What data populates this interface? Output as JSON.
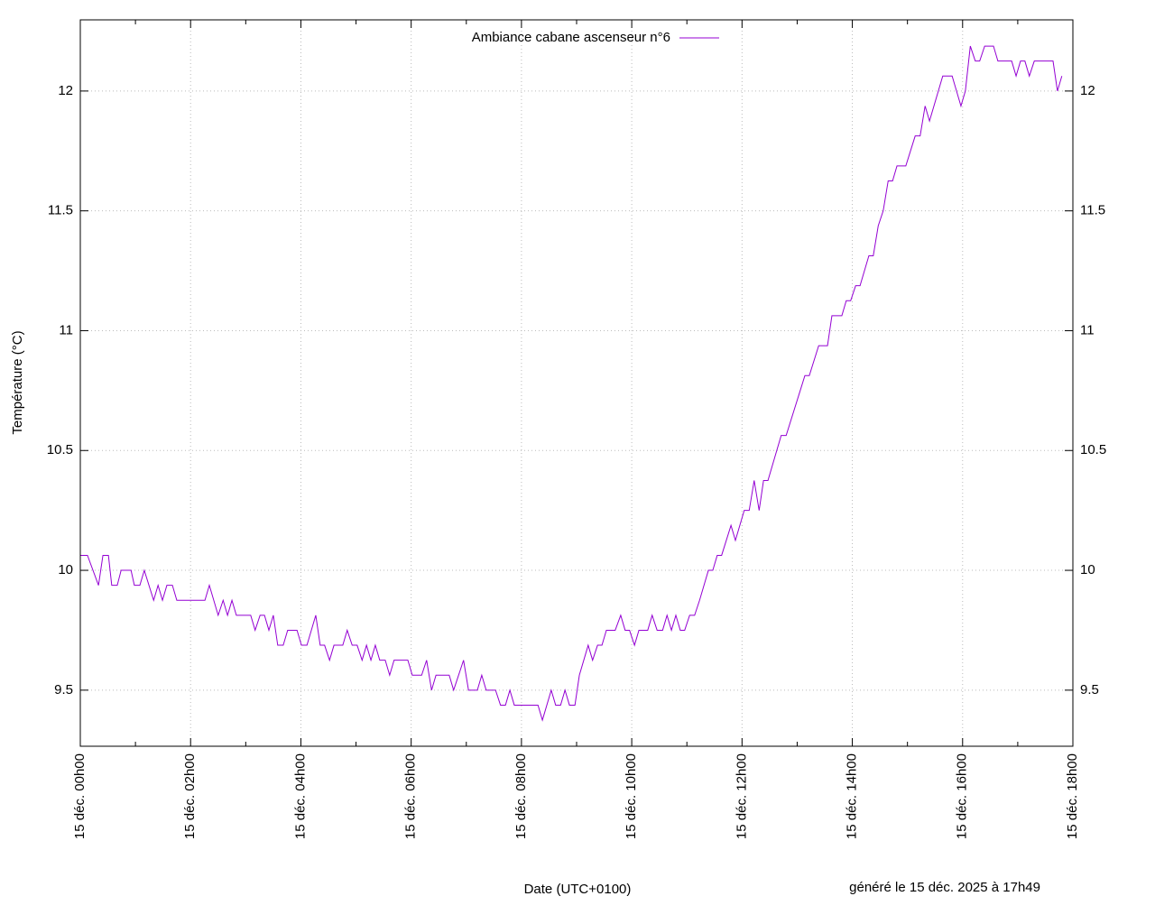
{
  "chart_data": {
    "type": "line",
    "xlabel": "Date (UTC+0100)",
    "ylabel": "Température (°C)",
    "annotation": "généré le 15 déc. 2025 à 17h49",
    "legend": "top",
    "grid": true,
    "xlim": [
      0,
      18
    ],
    "xticks": [
      {
        "value": 0,
        "label": "15 déc. 00h00"
      },
      {
        "value": 2,
        "label": "15 déc. 02h00"
      },
      {
        "value": 4,
        "label": "15 déc. 04h00"
      },
      {
        "value": 6,
        "label": "15 déc. 06h00"
      },
      {
        "value": 8,
        "label": "15 déc. 08h00"
      },
      {
        "value": 10,
        "label": "15 déc. 10h00"
      },
      {
        "value": 12,
        "label": "15 déc. 12h00"
      },
      {
        "value": 14,
        "label": "15 déc. 14h00"
      },
      {
        "value": 16,
        "label": "15 déc. 16h00"
      },
      {
        "value": 18,
        "label": "15 déc. 18h00"
      }
    ],
    "xminorticks": [
      1,
      3,
      5,
      7,
      9,
      11,
      13,
      15,
      17
    ],
    "ylim": [
      9.266,
      12.297
    ],
    "yticks": [
      9.5,
      10,
      10.5,
      11,
      11.5,
      12
    ],
    "y2lim": [
      9.266,
      12.297
    ],
    "y2ticks": [
      9.5,
      10,
      10.5,
      11,
      11.5,
      12
    ],
    "x": [
      0,
      0.13,
      0.33,
      0.41,
      0.51,
      0.57,
      0.67,
      0.74,
      0.92,
      0.98,
      1.08,
      1.16,
      1.33,
      1.41,
      1.49,
      1.57,
      1.67,
      1.75,
      2.26,
      2.34,
      2.5,
      2.59,
      2.67,
      2.75,
      2.83,
      3.09,
      3.17,
      3.26,
      3.34,
      3.42,
      3.5,
      3.58,
      3.68,
      3.76,
      3.93,
      4.01,
      4.11,
      4.27,
      4.35,
      4.43,
      4.52,
      4.6,
      4.76,
      4.84,
      4.93,
      5.02,
      5.11,
      5.19,
      5.27,
      5.35,
      5.43,
      5.53,
      5.61,
      5.69,
      5.94,
      6.02,
      6.19,
      6.28,
      6.37,
      6.45,
      6.69,
      6.77,
      6.95,
      7.04,
      7.2,
      7.28,
      7.36,
      7.53,
      7.62,
      7.71,
      7.79,
      7.87,
      8.3,
      8.38,
      8.54,
      8.62,
      8.71,
      8.79,
      8.87,
      8.97,
      9.05,
      9.21,
      9.29,
      9.38,
      9.46,
      9.54,
      9.7,
      9.8,
      9.88,
      9.96,
      10.05,
      10.13,
      10.29,
      10.37,
      10.46,
      10.56,
      10.64,
      10.72,
      10.8,
      10.88,
      10.96,
      11.05,
      11.14,
      11.23,
      11.39,
      11.47,
      11.55,
      11.63,
      11.8,
      11.88,
      12.04,
      12.13,
      12.22,
      12.31,
      12.39,
      12.47,
      12.71,
      12.8,
      13.14,
      13.22,
      13.39,
      13.55,
      13.63,
      13.81,
      13.89,
      13.97,
      14.06,
      14.14,
      14.3,
      14.38,
      14.47,
      14.56,
      14.65,
      14.73,
      14.81,
      14.97,
      15.14,
      15.23,
      15.32,
      15.4,
      15.64,
      15.81,
      15.97,
      16.05,
      16.14,
      16.23,
      16.31,
      16.4,
      16.56,
      16.64,
      16.89,
      16.97,
      17.05,
      17.13,
      17.21,
      17.3,
      17.56,
      17.64,
      17.72,
      17.8
    ],
    "series": [
      {
        "name": "Ambiance cabane ascenseur n°6",
        "color": "#9400d3",
        "values": [
          10.0625,
          10.0625,
          9.9375,
          10.0625,
          10.0625,
          9.9375,
          9.9375,
          10,
          10,
          9.9375,
          9.9375,
          10,
          9.875,
          9.9375,
          9.875,
          9.9375,
          9.9375,
          9.875,
          9.875,
          9.9375,
          9.8125,
          9.875,
          9.8125,
          9.875,
          9.8125,
          9.8125,
          9.75,
          9.8125,
          9.8125,
          9.75,
          9.8125,
          9.6875,
          9.6875,
          9.75,
          9.75,
          9.6875,
          9.6875,
          9.8125,
          9.6875,
          9.6875,
          9.625,
          9.6875,
          9.6875,
          9.75,
          9.6875,
          9.6875,
          9.625,
          9.6875,
          9.625,
          9.6875,
          9.625,
          9.625,
          9.5625,
          9.625,
          9.625,
          9.5625,
          9.5625,
          9.625,
          9.5,
          9.5625,
          9.5625,
          9.5,
          9.625,
          9.5,
          9.5,
          9.5625,
          9.5,
          9.5,
          9.4375,
          9.4375,
          9.5,
          9.4375,
          9.4375,
          9.375,
          9.5,
          9.4375,
          9.4375,
          9.5,
          9.4375,
          9.4375,
          9.5625,
          9.6875,
          9.625,
          9.6875,
          9.6875,
          9.75,
          9.75,
          9.8125,
          9.75,
          9.75,
          9.6875,
          9.75,
          9.75,
          9.8125,
          9.75,
          9.75,
          9.8125,
          9.75,
          9.8125,
          9.75,
          9.75,
          9.8125,
          9.8125,
          9.875,
          10,
          10,
          10.0625,
          10.0625,
          10.1875,
          10.125,
          10.25,
          10.25,
          10.375,
          10.25,
          10.375,
          10.375,
          10.5625,
          10.5625,
          10.8125,
          10.8125,
          10.9375,
          10.9375,
          11.0625,
          11.0625,
          11.125,
          11.125,
          11.1875,
          11.1875,
          11.3125,
          11.3125,
          11.4375,
          11.5,
          11.625,
          11.625,
          11.6875,
          11.6875,
          11.8125,
          11.8125,
          11.9375,
          11.875,
          12.0625,
          12.0625,
          11.9375,
          12,
          12.1875,
          12.125,
          12.125,
          12.1875,
          12.1875,
          12.125,
          12.125,
          12.0625,
          12.125,
          12.125,
          12.0625,
          12.125,
          12.125,
          12.125,
          12,
          12.0625
        ]
      }
    ]
  }
}
